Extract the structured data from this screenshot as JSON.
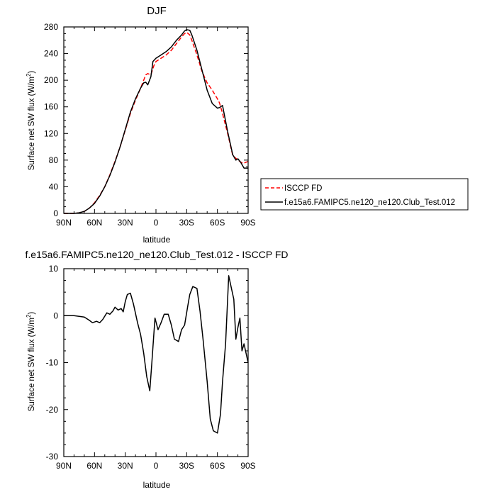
{
  "chart_data": [
    {
      "type": "line",
      "title": "DJF",
      "xlabel": "latitude",
      "ylabel_main": "Surface net SW flux (W/m",
      "ylabel_sup": "2",
      "ylabel_close": ")",
      "xlim": [
        90,
        -90
      ],
      "ylim": [
        0,
        280
      ],
      "xticks": [
        90,
        60,
        30,
        0,
        -30,
        -60,
        -90
      ],
      "xtick_labels": [
        "90N",
        "60N",
        "30N",
        "0",
        "30S",
        "60S",
        "90S"
      ],
      "yticks": [
        0,
        40,
        80,
        120,
        160,
        200,
        240,
        280
      ],
      "ytick_labels": [
        "0",
        "40",
        "80",
        "120",
        "160",
        "200",
        "240",
        "280"
      ],
      "legend_position": "right, outside plot",
      "series": [
        {
          "name": "ISCCP FD",
          "color": "#ff0000",
          "dash": "dashed",
          "x": [
            90,
            80,
            75,
            70,
            65,
            60,
            55,
            50,
            45,
            40,
            35,
            30,
            25,
            20,
            15,
            12,
            10,
            8,
            5,
            2,
            0,
            -5,
            -10,
            -15,
            -20,
            -25,
            -28,
            -30,
            -33,
            -35,
            -40,
            -45,
            -50,
            -55,
            -60,
            -62,
            -65,
            -70,
            -75,
            -80,
            -85,
            -90
          ],
          "y": [
            0,
            0,
            1,
            3,
            8,
            16,
            27,
            40,
            58,
            78,
            100,
            125,
            150,
            170,
            188,
            200,
            208,
            210,
            208,
            222,
            228,
            233,
            238,
            245,
            255,
            265,
            270,
            272,
            268,
            260,
            238,
            213,
            196,
            185,
            172,
            166,
            150,
            120,
            87,
            80,
            75,
            78
          ]
        },
        {
          "name": "f.e15a6.FAMIPC5.ne120_ne120.Club_Test.012",
          "color": "#000000",
          "dash": "solid",
          "x": [
            90,
            80,
            75,
            70,
            65,
            60,
            55,
            50,
            45,
            40,
            35,
            30,
            25,
            20,
            15,
            12,
            10,
            8,
            5,
            3,
            0,
            -5,
            -10,
            -15,
            -20,
            -25,
            -28,
            -30,
            -33,
            -35,
            -40,
            -45,
            -50,
            -55,
            -60,
            -62,
            -65,
            -70,
            -75,
            -78,
            -80,
            -83,
            -86,
            -90
          ],
          "y": [
            0,
            0,
            1,
            3,
            8,
            15,
            26,
            40,
            57,
            77,
            100,
            126,
            152,
            172,
            188,
            196,
            197,
            193,
            205,
            228,
            233,
            238,
            243,
            250,
            260,
            268,
            274,
            276,
            275,
            268,
            245,
            215,
            185,
            165,
            158,
            159,
            162,
            123,
            88,
            80,
            82,
            76,
            68,
            68
          ]
        }
      ]
    },
    {
      "type": "line",
      "title": "f.e15a6.FAMIPC5.ne120_ne120.Club_Test.012 - ISCCP FD",
      "xlabel": "latitude",
      "ylabel_main": "Surface net SW flux (W/m",
      "ylabel_sup": "2",
      "ylabel_close": ")",
      "xlim": [
        90,
        -90
      ],
      "ylim": [
        -30,
        10
      ],
      "xticks": [
        90,
        60,
        30,
        0,
        -30,
        -60,
        -90
      ],
      "xtick_labels": [
        "90N",
        "60N",
        "30N",
        "0",
        "30S",
        "60S",
        "90S"
      ],
      "yticks": [
        10,
        0,
        -10,
        -20,
        -30
      ],
      "ytick_labels": [
        "10",
        "0",
        "-10",
        "-20",
        "-30"
      ],
      "series": [
        {
          "name": "",
          "color": "#000000",
          "dash": "solid",
          "x": [
            90,
            80,
            70,
            65,
            62,
            58,
            55,
            52,
            48,
            45,
            42,
            40,
            37,
            34,
            32,
            30,
            28,
            25,
            22,
            18,
            15,
            12,
            9,
            6,
            4,
            1,
            -2,
            -5,
            -8,
            -12,
            -15,
            -18,
            -22,
            -25,
            -28,
            -31,
            -33,
            -36,
            -40,
            -43,
            -46,
            -50,
            -53,
            -56,
            -60,
            -63,
            -65,
            -68,
            -71,
            -74,
            -76,
            -78,
            -80,
            -82,
            -84,
            -86,
            -88,
            -90
          ],
          "y": [
            0,
            0,
            -0.3,
            -1,
            -1.5,
            -1.2,
            -1.5,
            -0.8,
            0.6,
            0.3,
            1,
            1.8,
            1.2,
            1.5,
            0.8,
            3,
            4.5,
            4.8,
            2.5,
            -1.5,
            -4,
            -8,
            -13,
            -16,
            -10,
            -0.5,
            -3,
            -1.5,
            0.3,
            0.3,
            -2,
            -5,
            -5.5,
            -3,
            -2,
            2,
            4.5,
            6.2,
            5.8,
            1,
            -5,
            -14,
            -22,
            -24.5,
            -25,
            -21,
            -14,
            -6,
            8.5,
            5.5,
            3.5,
            -5,
            -2.5,
            -0.5,
            -7.5,
            -6,
            -8,
            -10
          ]
        }
      ]
    }
  ]
}
